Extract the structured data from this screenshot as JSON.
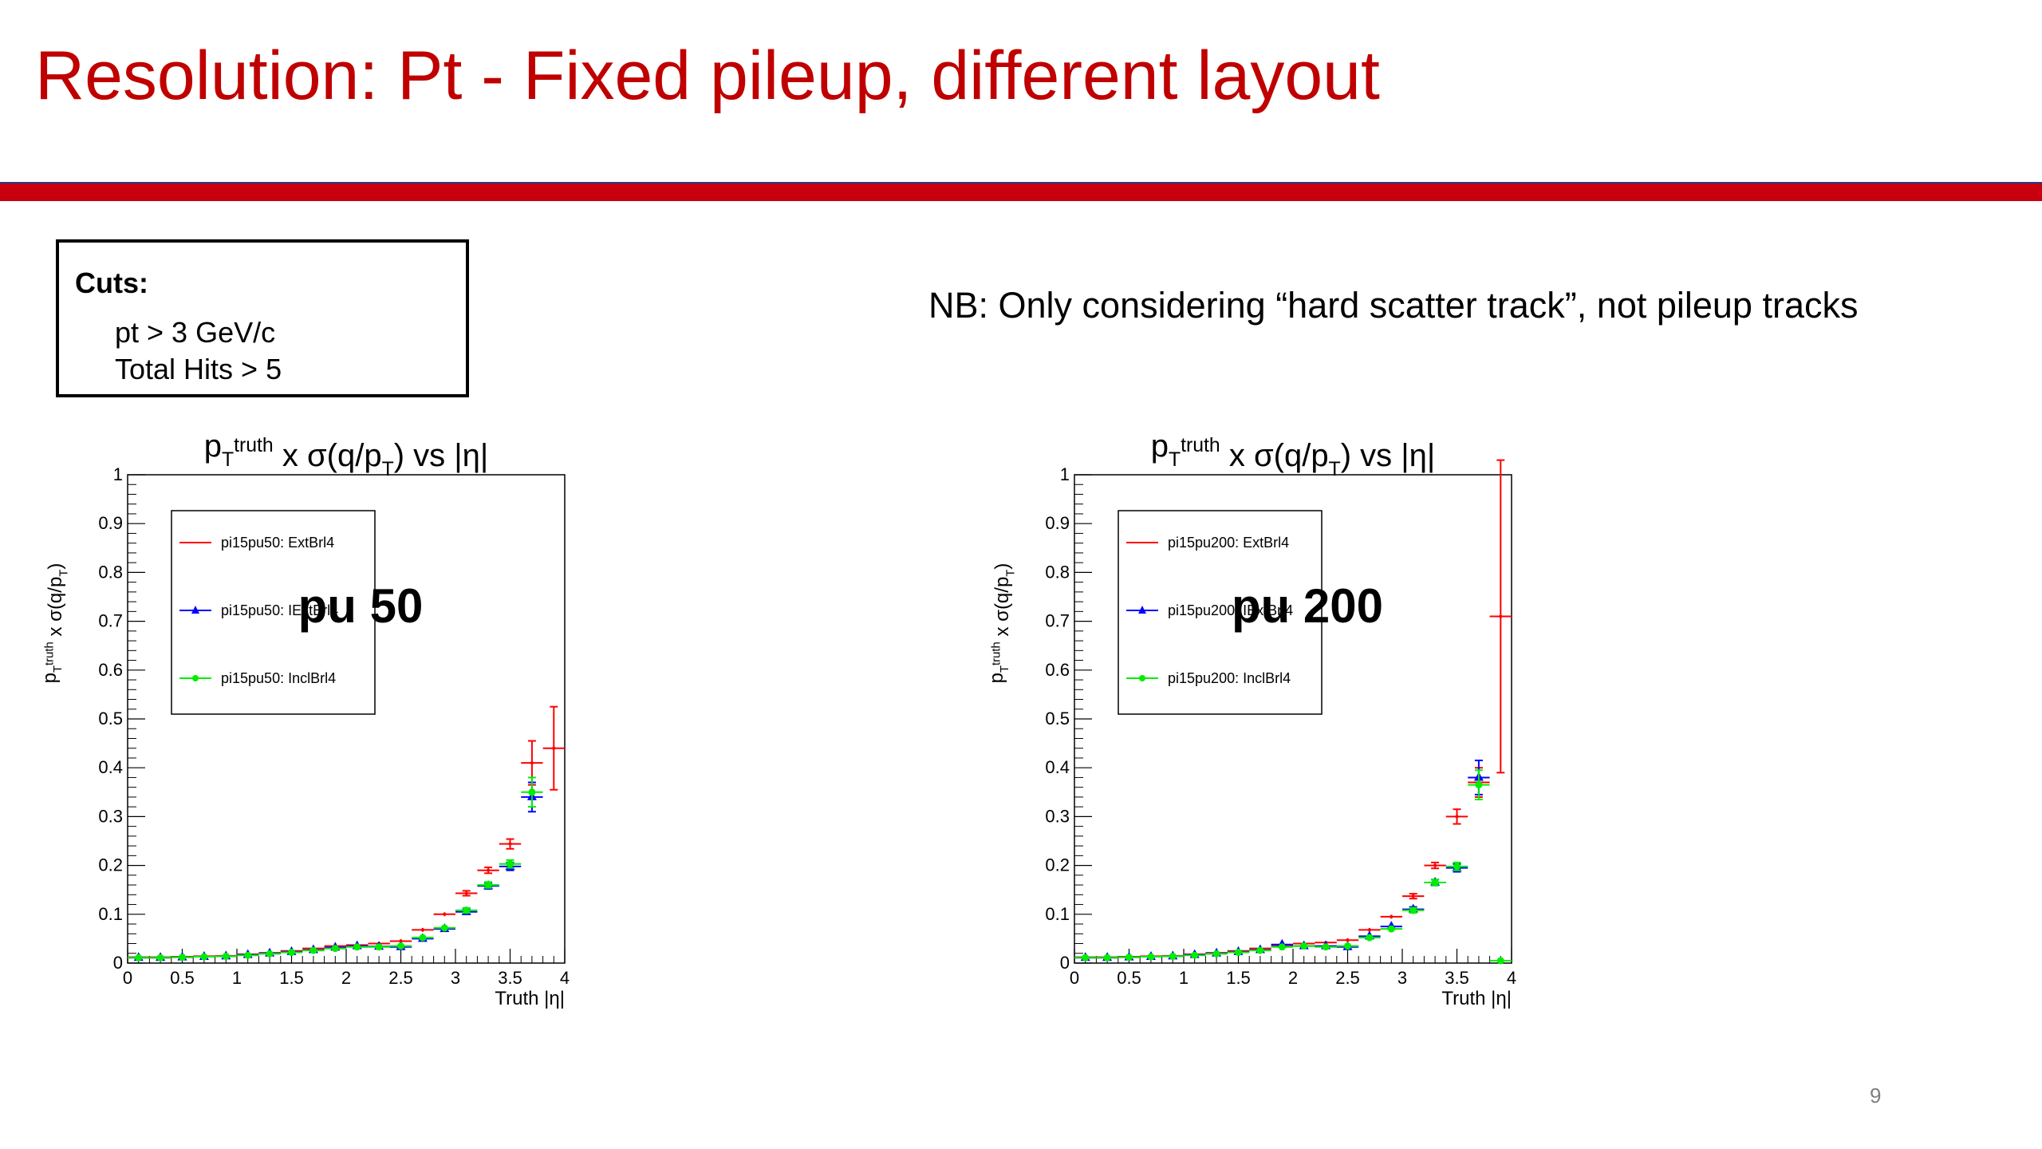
{
  "slide": {
    "title": "Resolution: Pt - Fixed pileup, different layout",
    "page_number": "9",
    "colors": {
      "title": "#c00000",
      "rule": "#c8000d",
      "rule_edge": "#2a3a8a"
    }
  },
  "cuts": {
    "title": "Cuts:",
    "lines": [
      "pt > 3 GeV/c",
      "Total Hits > 5"
    ]
  },
  "note": "NB: Only considering “hard scatter track”, not pileup tracks",
  "chart_data": [
    {
      "type": "scatter",
      "title": "p_T^truth x σ(q/p_T) vs |η|",
      "xlabel": "Truth |η|",
      "ylabel": "p_T^truth x σ(q/p_T)",
      "xlim": [
        0,
        4
      ],
      "ylim": [
        0,
        1
      ],
      "xticks": [
        "0",
        "0.5",
        "1",
        "1.5",
        "2",
        "2.5",
        "3",
        "3.5",
        "4"
      ],
      "yticks": [
        "0",
        "0.1",
        "0.2",
        "0.3",
        "0.4",
        "0.5",
        "0.6",
        "0.7",
        "0.8",
        "0.9",
        "1"
      ],
      "annotation": "pu 50",
      "legend_position": "top-left",
      "series": [
        {
          "name": "pi15pu50: ExtBrl4",
          "color": "#ff0000",
          "marker": "none",
          "x": [
            0.1,
            0.3,
            0.5,
            0.7,
            0.9,
            1.1,
            1.3,
            1.5,
            1.7,
            1.9,
            2.1,
            2.3,
            2.5,
            2.7,
            2.9,
            3.1,
            3.3,
            3.5,
            3.7,
            3.9
          ],
          "y": [
            0.012,
            0.012,
            0.013,
            0.014,
            0.015,
            0.018,
            0.021,
            0.025,
            0.03,
            0.035,
            0.037,
            0.04,
            0.045,
            0.068,
            0.1,
            0.143,
            0.19,
            0.244,
            0.41,
            0.44
          ],
          "yerr": [
            0.002,
            0.002,
            0.002,
            0.002,
            0.002,
            0.002,
            0.002,
            0.002,
            0.003,
            0.003,
            0.003,
            0.003,
            0.004,
            0.004,
            0.004,
            0.005,
            0.006,
            0.01,
            0.045,
            0.085
          ]
        },
        {
          "name": "pi15pu50: IExtBrl4",
          "color": "#0000ff",
          "marker": "triangle",
          "x": [
            0.1,
            0.3,
            0.5,
            0.7,
            0.9,
            1.1,
            1.3,
            1.5,
            1.7,
            1.9,
            2.1,
            2.3,
            2.5,
            2.7,
            2.9,
            3.1,
            3.3,
            3.5,
            3.7
          ],
          "y": [
            0.011,
            0.011,
            0.012,
            0.013,
            0.014,
            0.017,
            0.02,
            0.023,
            0.027,
            0.032,
            0.035,
            0.034,
            0.033,
            0.05,
            0.07,
            0.105,
            0.158,
            0.198,
            0.34
          ],
          "yerr": [
            0.002,
            0.002,
            0.002,
            0.002,
            0.002,
            0.002,
            0.002,
            0.002,
            0.002,
            0.003,
            0.003,
            0.003,
            0.003,
            0.004,
            0.004,
            0.005,
            0.006,
            0.008,
            0.03
          ]
        },
        {
          "name": "pi15pu50: InclBrl4",
          "color": "#00ee00",
          "marker": "circle",
          "x": [
            0.1,
            0.3,
            0.5,
            0.7,
            0.9,
            1.1,
            1.3,
            1.5,
            1.7,
            1.9,
            2.1,
            2.3,
            2.5,
            2.7,
            2.9,
            3.1,
            3.3,
            3.5,
            3.7
          ],
          "y": [
            0.011,
            0.011,
            0.012,
            0.013,
            0.014,
            0.016,
            0.019,
            0.022,
            0.026,
            0.03,
            0.033,
            0.033,
            0.035,
            0.052,
            0.072,
            0.108,
            0.16,
            0.203,
            0.35
          ],
          "yerr": [
            0.002,
            0.002,
            0.002,
            0.002,
            0.002,
            0.002,
            0.002,
            0.002,
            0.002,
            0.003,
            0.003,
            0.003,
            0.003,
            0.004,
            0.004,
            0.005,
            0.006,
            0.008,
            0.03
          ]
        }
      ]
    },
    {
      "type": "scatter",
      "title": "p_T^truth x σ(q/p_T) vs |η|",
      "xlabel": "Truth |η|",
      "ylabel": "p_T^truth x σ(q/p_T)",
      "xlim": [
        0,
        4
      ],
      "ylim": [
        0,
        1
      ],
      "xticks": [
        "0",
        "0.5",
        "1",
        "1.5",
        "2",
        "2.5",
        "3",
        "3.5",
        "4"
      ],
      "yticks": [
        "0",
        "0.1",
        "0.2",
        "0.3",
        "0.4",
        "0.5",
        "0.6",
        "0.7",
        "0.8",
        "0.9",
        "1"
      ],
      "annotation": "pu 200",
      "legend_position": "top-left",
      "series": [
        {
          "name": "pi15pu200: ExtBrl4",
          "color": "#ff0000",
          "marker": "none",
          "x": [
            0.1,
            0.3,
            0.5,
            0.7,
            0.9,
            1.1,
            1.3,
            1.5,
            1.7,
            1.9,
            2.1,
            2.3,
            2.5,
            2.7,
            2.9,
            3.1,
            3.3,
            3.5,
            3.7,
            3.9
          ],
          "y": [
            0.012,
            0.012,
            0.013,
            0.014,
            0.015,
            0.018,
            0.021,
            0.025,
            0.03,
            0.036,
            0.04,
            0.042,
            0.047,
            0.068,
            0.095,
            0.137,
            0.2,
            0.3,
            0.37,
            0.71
          ],
          "yerr": [
            0.002,
            0.002,
            0.002,
            0.002,
            0.002,
            0.002,
            0.002,
            0.002,
            0.003,
            0.003,
            0.003,
            0.003,
            0.004,
            0.004,
            0.004,
            0.005,
            0.006,
            0.015,
            0.03,
            0.32
          ]
        },
        {
          "name": "pi15pu200: IExtBrl4",
          "color": "#0000ff",
          "marker": "triangle",
          "x": [
            0.1,
            0.3,
            0.5,
            0.7,
            0.9,
            1.1,
            1.3,
            1.5,
            1.7,
            1.9,
            2.1,
            2.3,
            2.5,
            2.7,
            2.9,
            3.1,
            3.3,
            3.5,
            3.7
          ],
          "y": [
            0.011,
            0.011,
            0.012,
            0.013,
            0.014,
            0.017,
            0.02,
            0.023,
            0.027,
            0.038,
            0.035,
            0.035,
            0.033,
            0.055,
            0.075,
            0.11,
            0.165,
            0.195,
            0.38
          ],
          "yerr": [
            0.002,
            0.002,
            0.002,
            0.002,
            0.002,
            0.002,
            0.002,
            0.002,
            0.002,
            0.003,
            0.003,
            0.003,
            0.003,
            0.004,
            0.004,
            0.005,
            0.006,
            0.008,
            0.035
          ]
        },
        {
          "name": "pi15pu200: InclBrl4",
          "color": "#00ee00",
          "marker": "circle",
          "x": [
            0.1,
            0.3,
            0.5,
            0.7,
            0.9,
            1.1,
            1.3,
            1.5,
            1.7,
            1.9,
            2.1,
            2.3,
            2.5,
            2.7,
            2.9,
            3.1,
            3.3,
            3.5,
            3.7,
            3.9
          ],
          "y": [
            0.011,
            0.011,
            0.012,
            0.013,
            0.014,
            0.016,
            0.019,
            0.022,
            0.026,
            0.033,
            0.035,
            0.033,
            0.035,
            0.052,
            0.07,
            0.108,
            0.165,
            0.198,
            0.365,
            0.005
          ],
          "yerr": [
            0.002,
            0.002,
            0.002,
            0.002,
            0.002,
            0.002,
            0.002,
            0.002,
            0.002,
            0.003,
            0.003,
            0.003,
            0.003,
            0.004,
            0.004,
            0.005,
            0.006,
            0.008,
            0.03,
            0.002
          ]
        }
      ]
    }
  ]
}
